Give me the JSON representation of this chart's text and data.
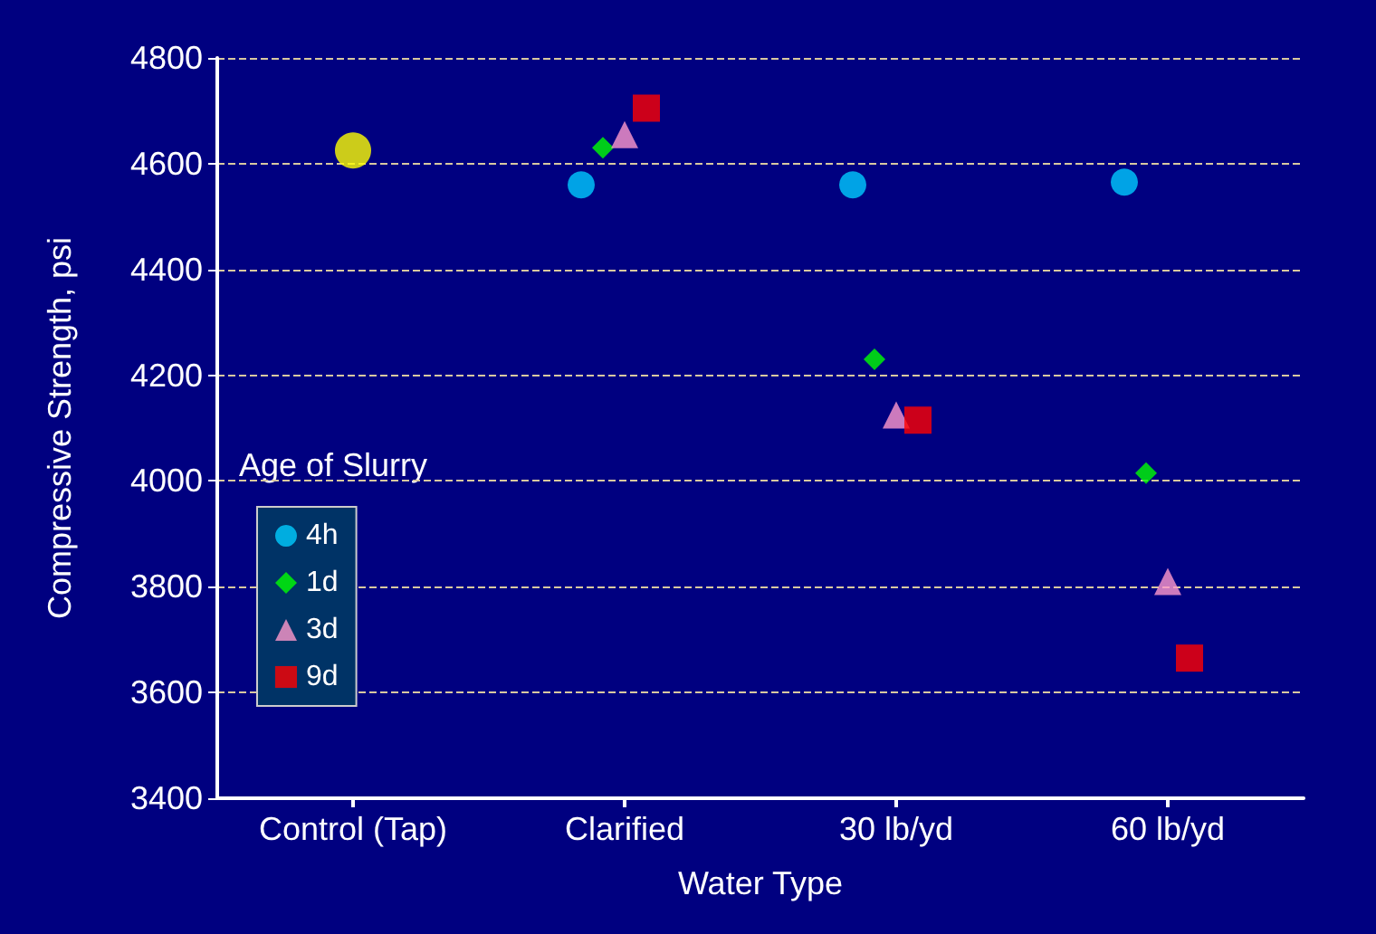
{
  "chart_data": {
    "type": "scatter",
    "xlabel": "Water Type",
    "ylabel": "Compressive Strength, psi",
    "legend_title": "Age of Slurry",
    "categories": [
      "Control (Tap)",
      "Clarified",
      "30 lb/yd",
      "60 lb/yd"
    ],
    "series": [
      {
        "color": "#ffff00",
        "marker": "circle",
        "values": [
          4625,
          null,
          null,
          null
        ]
      },
      {
        "name": "4h",
        "color": "#00ccff",
        "marker": "circle",
        "values": [
          null,
          4560,
          4560,
          4565
        ]
      },
      {
        "name": "1d",
        "color": "#00ff00",
        "marker": "diamond",
        "values": [
          null,
          4630,
          4230,
          4015
        ]
      },
      {
        "name": "3d",
        "color": "#ff99cc",
        "marker": "triangle",
        "values": [
          null,
          4655,
          4125,
          3810
        ]
      },
      {
        "name": "9d",
        "color": "#ff0000",
        "marker": "square",
        "values": [
          null,
          4705,
          4115,
          3665
        ]
      }
    ],
    "ylim": [
      3400,
      4800
    ],
    "yticks": [
      3400,
      3600,
      3800,
      4000,
      4200,
      4400,
      4600,
      4800
    ],
    "grid": "y",
    "legend": "left"
  }
}
